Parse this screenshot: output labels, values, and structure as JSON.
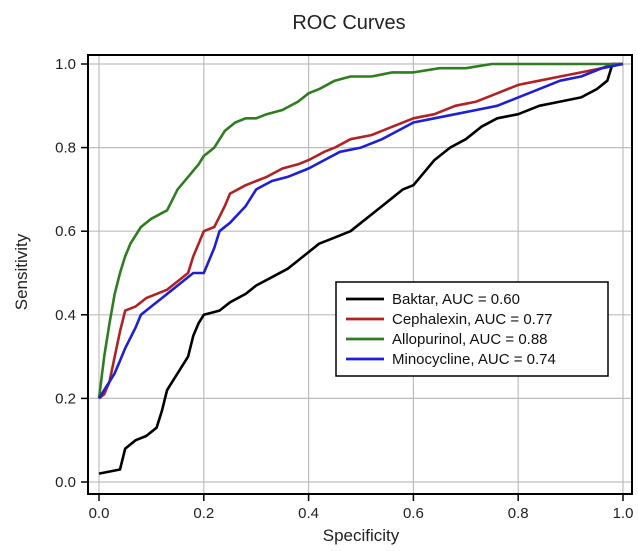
{
  "chart_data": {
    "type": "line",
    "title": "ROC Curves",
    "xlabel": "Specificity",
    "ylabel": "Sensitivity",
    "xlim": [
      0,
      1
    ],
    "ylim": [
      0,
      1
    ],
    "xticks": [
      "0.0",
      "0.2",
      "0.4",
      "0.6",
      "0.8",
      "1.0"
    ],
    "yticks": [
      "0.0",
      "0.2",
      "0.4",
      "0.6",
      "0.8",
      "1.0"
    ],
    "grid": true,
    "legend_position": "center-right",
    "series": [
      {
        "name": "Baktar, AUC = 0.60",
        "color": "#000000",
        "x": [
          0.0,
          0.04,
          0.05,
          0.07,
          0.09,
          0.11,
          0.12,
          0.13,
          0.15,
          0.17,
          0.18,
          0.19,
          0.2,
          0.23,
          0.25,
          0.28,
          0.3,
          0.33,
          0.36,
          0.38,
          0.4,
          0.42,
          0.44,
          0.46,
          0.48,
          0.5,
          0.52,
          0.54,
          0.56,
          0.58,
          0.6,
          0.62,
          0.64,
          0.67,
          0.7,
          0.73,
          0.76,
          0.8,
          0.84,
          0.88,
          0.92,
          0.95,
          0.97,
          0.98,
          1.0
        ],
        "y": [
          0.02,
          0.03,
          0.08,
          0.1,
          0.11,
          0.13,
          0.17,
          0.22,
          0.26,
          0.3,
          0.35,
          0.38,
          0.4,
          0.41,
          0.43,
          0.45,
          0.47,
          0.49,
          0.51,
          0.53,
          0.55,
          0.57,
          0.58,
          0.59,
          0.6,
          0.62,
          0.64,
          0.66,
          0.68,
          0.7,
          0.71,
          0.74,
          0.77,
          0.8,
          0.82,
          0.85,
          0.87,
          0.88,
          0.9,
          0.91,
          0.92,
          0.94,
          0.96,
          1.0,
          1.0
        ]
      },
      {
        "name": "Cephalexin, AUC = 0.77",
        "color": "#b22222",
        "x": [
          0.0,
          0.01,
          0.02,
          0.03,
          0.04,
          0.05,
          0.07,
          0.09,
          0.11,
          0.13,
          0.15,
          0.17,
          0.18,
          0.19,
          0.2,
          0.22,
          0.24,
          0.25,
          0.28,
          0.3,
          0.32,
          0.35,
          0.38,
          0.4,
          0.43,
          0.45,
          0.48,
          0.52,
          0.56,
          0.6,
          0.64,
          0.68,
          0.72,
          0.76,
          0.8,
          0.84,
          0.88,
          0.92,
          0.96,
          0.98,
          1.0
        ],
        "y": [
          0.2,
          0.21,
          0.24,
          0.3,
          0.36,
          0.41,
          0.42,
          0.44,
          0.45,
          0.46,
          0.48,
          0.5,
          0.54,
          0.57,
          0.6,
          0.61,
          0.66,
          0.69,
          0.71,
          0.72,
          0.73,
          0.75,
          0.76,
          0.77,
          0.79,
          0.8,
          0.82,
          0.83,
          0.85,
          0.87,
          0.88,
          0.9,
          0.91,
          0.93,
          0.95,
          0.96,
          0.97,
          0.98,
          0.99,
          1.0,
          1.0
        ]
      },
      {
        "name": "Allopurinol, AUC = 0.88",
        "color": "#2e7d1e",
        "x": [
          0.0,
          0.01,
          0.02,
          0.03,
          0.04,
          0.05,
          0.06,
          0.08,
          0.1,
          0.13,
          0.15,
          0.17,
          0.19,
          0.2,
          0.22,
          0.24,
          0.26,
          0.28,
          0.3,
          0.32,
          0.35,
          0.38,
          0.4,
          0.42,
          0.45,
          0.48,
          0.52,
          0.56,
          0.6,
          0.65,
          0.7,
          0.75,
          0.8,
          0.85,
          0.9,
          0.95,
          1.0
        ],
        "y": [
          0.2,
          0.3,
          0.38,
          0.45,
          0.5,
          0.54,
          0.57,
          0.61,
          0.63,
          0.65,
          0.7,
          0.73,
          0.76,
          0.78,
          0.8,
          0.84,
          0.86,
          0.87,
          0.87,
          0.88,
          0.89,
          0.91,
          0.93,
          0.94,
          0.96,
          0.97,
          0.97,
          0.98,
          0.98,
          0.99,
          0.99,
          1.0,
          1.0,
          1.0,
          1.0,
          1.0,
          1.0
        ]
      },
      {
        "name": "Minocycline, AUC = 0.74",
        "color": "#1f1fd6",
        "x": [
          0.0,
          0.01,
          0.02,
          0.03,
          0.04,
          0.05,
          0.07,
          0.08,
          0.1,
          0.12,
          0.14,
          0.16,
          0.18,
          0.2,
          0.22,
          0.23,
          0.25,
          0.28,
          0.3,
          0.33,
          0.36,
          0.4,
          0.43,
          0.46,
          0.5,
          0.54,
          0.57,
          0.6,
          0.64,
          0.68,
          0.72,
          0.76,
          0.8,
          0.84,
          0.88,
          0.92,
          0.96,
          1.0
        ],
        "y": [
          0.2,
          0.22,
          0.24,
          0.26,
          0.29,
          0.32,
          0.37,
          0.4,
          0.42,
          0.44,
          0.46,
          0.48,
          0.5,
          0.5,
          0.56,
          0.6,
          0.62,
          0.66,
          0.7,
          0.72,
          0.73,
          0.75,
          0.77,
          0.79,
          0.8,
          0.82,
          0.84,
          0.86,
          0.87,
          0.88,
          0.89,
          0.9,
          0.92,
          0.94,
          0.96,
          0.97,
          0.99,
          1.0
        ]
      }
    ]
  }
}
